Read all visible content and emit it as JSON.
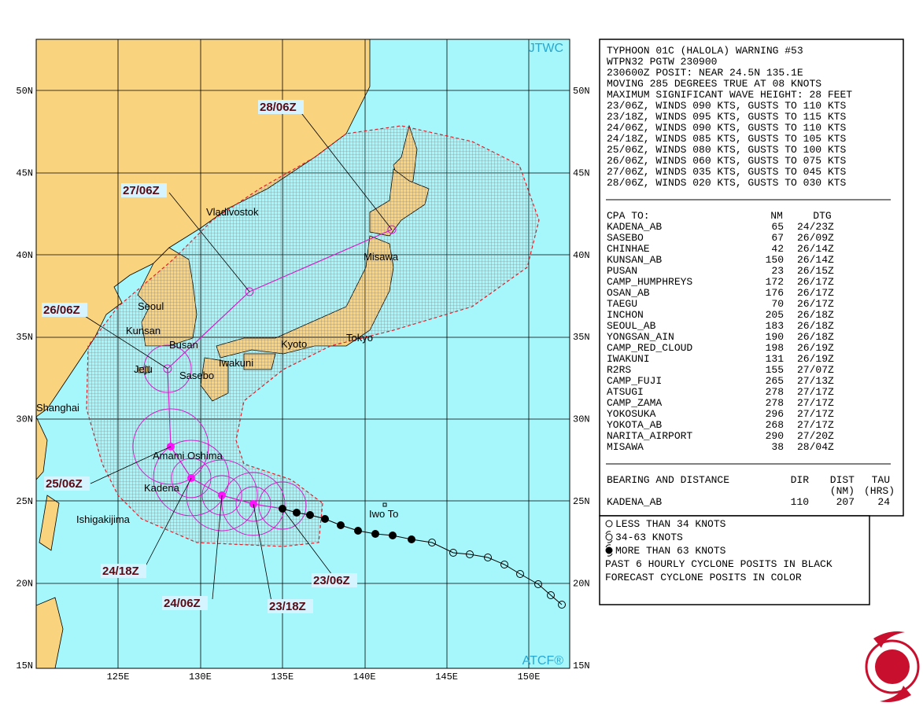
{
  "map": {
    "corner_top": "JTWC",
    "corner_bottom": "ATCF®",
    "lat_labels": [
      "50N",
      "45N",
      "40N",
      "35N",
      "30N",
      "25N",
      "20N",
      "15N"
    ],
    "lon_labels": [
      "125E",
      "130E",
      "135E",
      "140E",
      "145E",
      "150E"
    ],
    "places": [
      "Vladivostok",
      "Misawa",
      "Seoul",
      "Kunsan",
      "Busan",
      "Kyoto",
      "Tokyo",
      "Iwakuni",
      "Jeju",
      "Sasebo",
      "Shanghai",
      "Amami Oshima",
      "Kadena",
      "Ishigakijima",
      "Iwo To"
    ],
    "times": [
      "28/06Z",
      "27/06Z",
      "26/06Z",
      "25/06Z",
      "24/18Z",
      "24/06Z",
      "23/18Z",
      "23/06Z"
    ]
  },
  "warning": {
    "lines": [
      "TYPHOON 01C (HALOLA) WARNING #53",
      "WTPN32 PGTW 230900",
      "230600Z POSIT: NEAR 24.5N 135.1E",
      "MOVING 285 DEGREES TRUE AT 08 KNOTS",
      "MAXIMUM SIGNIFICANT WAVE HEIGHT: 28 FEET",
      "23/06Z, WINDS 090 KTS, GUSTS TO 110 KTS",
      "23/18Z, WINDS 095 KTS, GUSTS TO 115 KTS",
      "24/06Z, WINDS 090 KTS, GUSTS TO 110 KTS",
      "24/18Z, WINDS 085 KTS, GUSTS TO 105 KTS",
      "25/06Z, WINDS 080 KTS, GUSTS TO 100 KTS",
      "26/06Z, WINDS 060 KTS, GUSTS TO 075 KTS",
      "27/06Z, WINDS 035 KTS, GUSTS TO 045 KTS",
      "28/06Z, WINDS 020 KTS, GUSTS TO 030 KTS"
    ],
    "cpa_header": [
      "CPA TO:",
      "NM",
      "DTG"
    ],
    "cpa_rows": [
      [
        "KADENA_AB",
        "65",
        "24/23Z"
      ],
      [
        "SASEBO",
        "67",
        "26/09Z"
      ],
      [
        "CHINHAE",
        "42",
        "26/14Z"
      ],
      [
        "KUNSAN_AB",
        "150",
        "26/14Z"
      ],
      [
        "PUSAN",
        "23",
        "26/15Z"
      ],
      [
        "CAMP_HUMPHREYS",
        "172",
        "26/17Z"
      ],
      [
        "OSAN_AB",
        "176",
        "26/17Z"
      ],
      [
        "TAEGU",
        "70",
        "26/17Z"
      ],
      [
        "INCHON",
        "205",
        "26/18Z"
      ],
      [
        "SEOUL_AB",
        "183",
        "26/18Z"
      ],
      [
        "YONGSAN_AIN",
        "190",
        "26/18Z"
      ],
      [
        "CAMP_RED_CLOUD",
        "198",
        "26/19Z"
      ],
      [
        "IWAKUNI",
        "131",
        "26/19Z"
      ],
      [
        "R2RS",
        "155",
        "27/07Z"
      ],
      [
        "CAMP_FUJI",
        "265",
        "27/13Z"
      ],
      [
        "ATSUGI",
        "278",
        "27/17Z"
      ],
      [
        "CAMP_ZAMA",
        "278",
        "27/17Z"
      ],
      [
        "YOKOSUKA",
        "296",
        "27/17Z"
      ],
      [
        "YOKOTA_AB",
        "268",
        "27/17Z"
      ],
      [
        "NARITA_AIRPORT",
        "290",
        "27/20Z"
      ],
      [
        "MISAWA",
        "38",
        "28/04Z"
      ]
    ],
    "bearing_header": [
      "BEARING AND DISTANCE",
      "DIR",
      "DIST",
      "TAU"
    ],
    "bearing_units": [
      "(NM)",
      "(HRS)"
    ],
    "bearing_rows": [
      [
        "KADENA_AB",
        "110",
        "207",
        "24"
      ]
    ]
  },
  "legend": [
    "LESS THAN 34 KNOTS",
    "34-63 KNOTS",
    "MORE THAN 63 KNOTS",
    "PAST 6 HOURLY CYCLONE POSITS IN BLACK",
    "FORECAST CYCLONE POSITS IN COLOR"
  ]
}
